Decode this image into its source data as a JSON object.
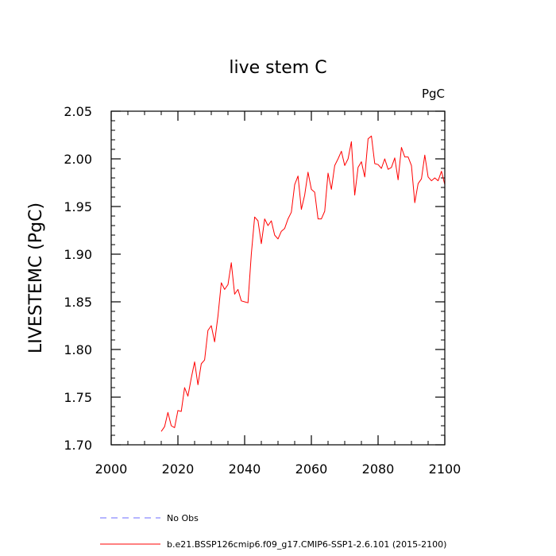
{
  "chart_data": {
    "type": "line",
    "title": "live stem C",
    "units_label": "PgC",
    "xlabel": "",
    "ylabel": "LIVESTEMC  (PgC)",
    "xlim": [
      2000,
      2100
    ],
    "ylim": [
      1.7,
      2.05
    ],
    "x_ticks": [
      2000,
      2020,
      2040,
      2060,
      2080,
      2100
    ],
    "x_tick_labels": [
      "2000",
      "2020",
      "2040",
      "2060",
      "2080",
      "2100"
    ],
    "y_ticks": [
      1.7,
      1.75,
      1.8,
      1.85,
      1.9,
      1.95,
      2.0,
      2.05
    ],
    "y_tick_labels": [
      "1.70",
      "1.75",
      "1.80",
      "1.85",
      "1.90",
      "1.95",
      "2.00",
      "2.05"
    ],
    "legend": [
      {
        "label": "No Obs",
        "color": "#6b6bff",
        "style": "dashed"
      },
      {
        "label": "b.e21.BSSP126cmip6.f09_g17.CMIP6-SSP1-2.6.101 (2015-2100)",
        "color": "#ff0000",
        "style": "solid"
      }
    ],
    "series": [
      {
        "name": "b.e21.BSSP126cmip6.f09_g17.CMIP6-SSP1-2.6.101 (2015-2100)",
        "color": "#ff0000",
        "x": [
          2015,
          2016,
          2017,
          2018,
          2019,
          2020,
          2021,
          2022,
          2023,
          2024,
          2025,
          2026,
          2027,
          2028,
          2029,
          2030,
          2031,
          2032,
          2033,
          2034,
          2035,
          2036,
          2037,
          2038,
          2039,
          2040,
          2041,
          2042,
          2043,
          2044,
          2045,
          2046,
          2047,
          2048,
          2049,
          2050,
          2051,
          2052,
          2053,
          2054,
          2055,
          2056,
          2057,
          2058,
          2059,
          2060,
          2061,
          2062,
          2063,
          2064,
          2065,
          2066,
          2067,
          2068,
          2069,
          2070,
          2071,
          2072,
          2073,
          2074,
          2075,
          2076,
          2077,
          2078,
          2079,
          2080,
          2081,
          2082,
          2083,
          2084,
          2085,
          2086,
          2087,
          2088,
          2089,
          2090,
          2091,
          2092,
          2093,
          2094,
          2095,
          2096,
          2097,
          2098,
          2099,
          2100
        ],
        "values": [
          1.714,
          1.719,
          1.734,
          1.72,
          1.718,
          1.736,
          1.735,
          1.76,
          1.751,
          1.77,
          1.787,
          1.763,
          1.785,
          1.789,
          1.82,
          1.825,
          1.808,
          1.835,
          1.87,
          1.863,
          1.868,
          1.891,
          1.858,
          1.863,
          1.851,
          1.85,
          1.849,
          1.9,
          1.939,
          1.935,
          1.911,
          1.937,
          1.93,
          1.935,
          1.92,
          1.916,
          1.924,
          1.927,
          1.937,
          1.944,
          1.973,
          1.982,
          1.947,
          1.962,
          1.986,
          1.968,
          1.965,
          1.937,
          1.937,
          1.945,
          1.985,
          1.968,
          1.993,
          2.0,
          2.008,
          1.993,
          2.0,
          2.018,
          1.962,
          1.991,
          1.997,
          1.981,
          2.021,
          2.024,
          1.995,
          1.994,
          1.99,
          2.0,
          1.989,
          1.991,
          2.001,
          1.978,
          2.012,
          2.002,
          2.002,
          1.993,
          1.954,
          1.974,
          1.979,
          2.004,
          1.981,
          1.977,
          1.98,
          1.977,
          1.987,
          1.973
        ]
      }
    ]
  }
}
